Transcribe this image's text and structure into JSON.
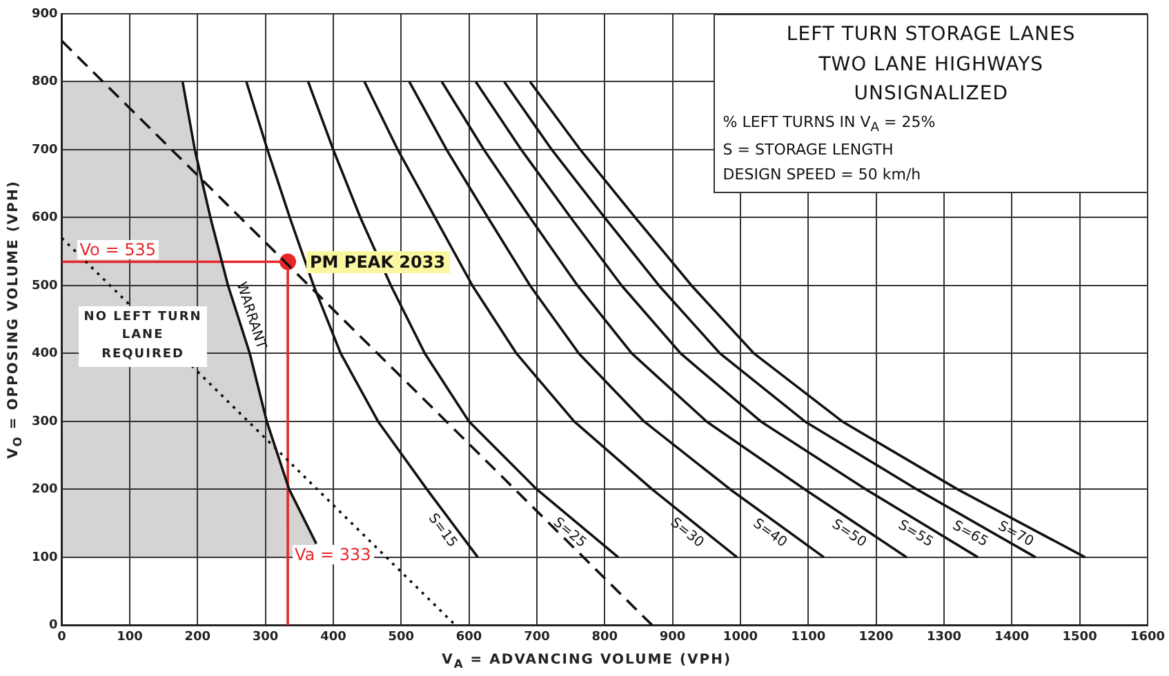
{
  "chart_data": {
    "type": "line",
    "title": "LEFT TURN STORAGE LANES\nTWO LANE HIGHWAYS\nUNSIGNALIZED",
    "xlabel": "V$_{A}$ = ADVANCING VOLUME (VPH)",
    "ylabel": "V$_{O}$ = OPPOSING VOLUME (VPH)",
    "xlim": [
      0,
      1600
    ],
    "xticks": [
      0,
      100,
      200,
      300,
      400,
      500,
      600,
      700,
      800,
      900,
      1000,
      1100,
      1200,
      1300,
      1400,
      1500,
      1600
    ],
    "ylim": [
      0,
      900
    ],
    "yticks": [
      0,
      100,
      200,
      300,
      400,
      500,
      600,
      700,
      800,
      900
    ],
    "grid": true,
    "legend": false,
    "marker": "none",
    "series": [
      {
        "name": "WARRANT",
        "color": "#111111",
        "x": [
          178,
          196,
          219,
          245,
          277,
          302,
          335,
          375
        ],
        "values": [
          800,
          700,
          600,
          500,
          400,
          300,
          200,
          120
        ]
      },
      {
        "name": "S=15",
        "color": "#111111",
        "x": [
          272,
          303,
          336,
          371,
          411,
          466,
          538,
          613
        ],
        "values": [
          800,
          700,
          600,
          500,
          400,
          300,
          200,
          100
        ]
      },
      {
        "name": "S=25",
        "color": "#111111",
        "x": [
          363,
          400,
          440,
          485,
          535,
          600,
          700,
          820
        ],
        "values": [
          800,
          700,
          600,
          500,
          400,
          300,
          200,
          100
        ]
      },
      {
        "name": "S=30",
        "color": "#111111",
        "x": [
          446,
          495,
          550,
          605,
          670,
          755,
          870,
          995
        ],
        "values": [
          800,
          700,
          600,
          500,
          400,
          300,
          200,
          100
        ]
      },
      {
        "name": "S=40",
        "color": "#111111",
        "x": [
          512,
          567,
          628,
          690,
          762,
          858,
          985,
          1123
        ],
        "values": [
          800,
          700,
          600,
          500,
          400,
          300,
          200,
          100
        ]
      },
      {
        "name": "S=50",
        "color": "#111111",
        "x": [
          560,
          622,
          690,
          760,
          840,
          950,
          1095,
          1245
        ],
        "values": [
          800,
          700,
          600,
          500,
          400,
          300,
          200,
          100
        ]
      },
      {
        "name": "S=55",
        "color": "#111111",
        "x": [
          610,
          677,
          750,
          825,
          912,
          1030,
          1185,
          1350
        ],
        "values": [
          800,
          700,
          600,
          500,
          400,
          300,
          200,
          100
        ]
      },
      {
        "name": "S=65",
        "color": "#111111",
        "x": [
          652,
          722,
          800,
          880,
          970,
          1095,
          1260,
          1435
        ],
        "values": [
          800,
          700,
          600,
          500,
          400,
          300,
          200,
          100
        ]
      },
      {
        "name": "S=70",
        "color": "#111111",
        "x": [
          690,
          764,
          845,
          928,
          1020,
          1150,
          1320,
          1508
        ],
        "values": [
          800,
          700,
          600,
          500,
          400,
          300,
          200,
          100
        ]
      },
      {
        "color": "#111111",
        "line_style": "dashed",
        "x": [
          0,
          870
        ],
        "values": [
          860,
          0
        ]
      },
      {
        "color": "#111111",
        "line_style": "dotted",
        "x": [
          0,
          580
        ],
        "values": [
          570,
          0
        ]
      },
      {
        "color": "#e8262a",
        "x": [
          0,
          333,
          333
        ],
        "values": [
          535,
          535,
          0
        ]
      },
      {
        "type": "scatter",
        "marker": "circle",
        "color": "#e8262a",
        "x": [
          333
        ],
        "values": [
          535
        ]
      }
    ],
    "annotations": [
      "% LEFT TURNS IN V$_{A}$ = 25%",
      "S = STORAGE LENGTH",
      "DESIGN SPEED = 50 km/h",
      "NO LEFT TURN\nLANE\nREQUIRED",
      "Vo = 535",
      "PM PEAK 2033",
      "Va = 333"
    ]
  }
}
